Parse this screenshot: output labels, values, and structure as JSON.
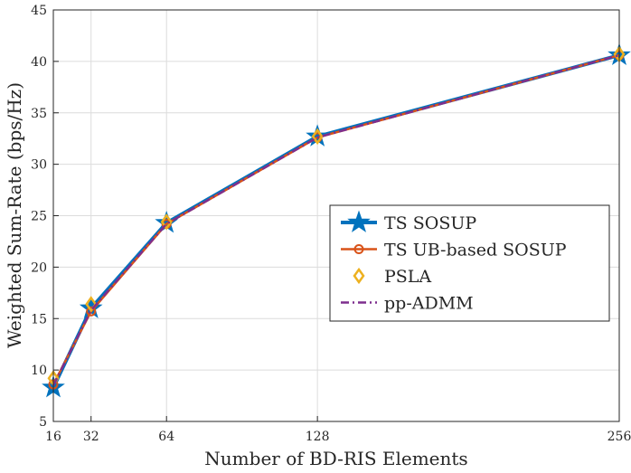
{
  "chart_data": {
    "type": "line",
    "title": "",
    "xlabel": "Number of BD-RIS Elements",
    "ylabel": "Weighted Sum-Rate (bps/Hz)",
    "x": [
      16,
      32,
      64,
      128,
      256
    ],
    "xlim": [
      16,
      256
    ],
    "ylim": [
      5,
      45
    ],
    "xticks": [
      "16",
      "32",
      "64",
      "128",
      "256"
    ],
    "yticks": [
      "5",
      "10",
      "15",
      "20",
      "25",
      "30",
      "35",
      "40",
      "45"
    ],
    "grid": true,
    "legend_position": "center-right",
    "series": [
      {
        "name": "TS SOSUP",
        "values": [
          8.3,
          16.0,
          24.3,
          32.7,
          40.6
        ],
        "color": "#0072BD",
        "marker": "star",
        "line": "solid"
      },
      {
        "name": "TS UB-based SOSUP",
        "values": [
          8.6,
          15.7,
          24.2,
          32.6,
          40.6
        ],
        "color": "#D95319",
        "marker": "circle",
        "line": "solid"
      },
      {
        "name": "PSLA",
        "values": [
          9.2,
          16.4,
          24.4,
          32.7,
          40.7
        ],
        "color": "#EDB120",
        "marker": "diamond",
        "line": "none"
      },
      {
        "name": "pp-ADMM",
        "values": [
          8.5,
          15.8,
          24.2,
          32.6,
          40.6
        ],
        "color": "#7E2F8E",
        "marker": "none",
        "line": "dashdot"
      }
    ]
  }
}
